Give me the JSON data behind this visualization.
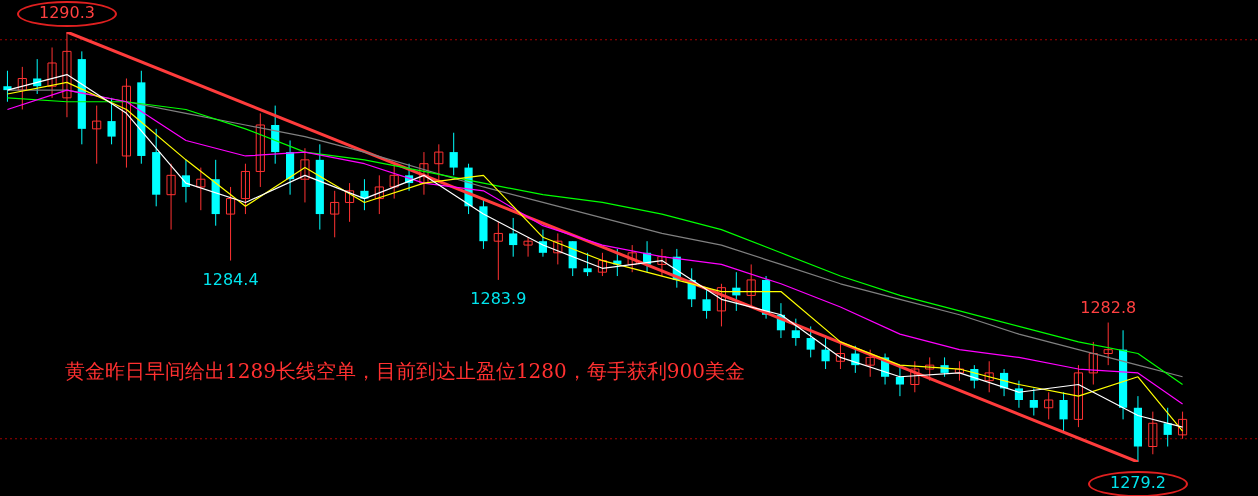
{
  "chart_data": {
    "type": "candlestick",
    "tick_labels": false,
    "legend": false,
    "categories": [
      null,
      null,
      null,
      null,
      null,
      null,
      null,
      null,
      null,
      null,
      null,
      null,
      null,
      null,
      null,
      null,
      null,
      null,
      null,
      null,
      null,
      null,
      null,
      null,
      null,
      null,
      null,
      null,
      null,
      null,
      null,
      null,
      null,
      null,
      null,
      null,
      null,
      null,
      null,
      null,
      null,
      null,
      null,
      null,
      null,
      null,
      null,
      null,
      null,
      null,
      null,
      null,
      null,
      null,
      null,
      null,
      null,
      null,
      null,
      null,
      null,
      null,
      null,
      null,
      null,
      null,
      null,
      null,
      null,
      null,
      null,
      null,
      null,
      null,
      null,
      null,
      null,
      null,
      null,
      null
    ],
    "ohlc": [
      [
        1288.9,
        1289.3,
        1288.5,
        1288.8
      ],
      [
        1288.8,
        1289.4,
        1288.3,
        1289.1
      ],
      [
        1289.1,
        1289.6,
        1288.7,
        1288.9
      ],
      [
        1288.9,
        1289.9,
        1288.6,
        1289.5
      ],
      [
        1288.6,
        1290.3,
        1288.1,
        1289.8
      ],
      [
        1289.6,
        1289.8,
        1287.4,
        1287.8
      ],
      [
        1287.8,
        1288.4,
        1286.9,
        1288.0
      ],
      [
        1288.0,
        1288.6,
        1287.4,
        1287.6
      ],
      [
        1287.1,
        1289.1,
        1286.8,
        1288.9
      ],
      [
        1289.0,
        1289.3,
        1286.9,
        1287.1
      ],
      [
        1287.2,
        1287.8,
        1285.8,
        1286.1
      ],
      [
        1286.1,
        1286.9,
        1285.2,
        1286.6
      ],
      [
        1286.6,
        1287.0,
        1285.9,
        1286.3
      ],
      [
        1286.3,
        1286.8,
        1285.7,
        1286.5
      ],
      [
        1286.5,
        1287.0,
        1285.3,
        1285.6
      ],
      [
        1285.6,
        1286.3,
        1284.4,
        1286.0
      ],
      [
        1286.0,
        1286.9,
        1285.6,
        1286.7
      ],
      [
        1286.7,
        1288.2,
        1286.3,
        1287.9
      ],
      [
        1287.9,
        1288.4,
        1286.9,
        1287.2
      ],
      [
        1287.2,
        1287.5,
        1286.1,
        1286.5
      ],
      [
        1286.5,
        1287.3,
        1285.9,
        1287.0
      ],
      [
        1287.0,
        1287.4,
        1285.2,
        1285.6
      ],
      [
        1285.6,
        1286.2,
        1285.0,
        1285.9
      ],
      [
        1285.9,
        1286.4,
        1285.4,
        1286.2
      ],
      [
        1286.2,
        1286.5,
        1285.7,
        1286.0
      ],
      [
        1286.0,
        1286.6,
        1285.6,
        1286.3
      ],
      [
        1286.3,
        1286.9,
        1286.0,
        1286.6
      ],
      [
        1286.6,
        1286.9,
        1286.2,
        1286.4
      ],
      [
        1286.4,
        1287.2,
        1286.1,
        1286.9
      ],
      [
        1286.9,
        1287.4,
        1286.4,
        1287.2
      ],
      [
        1287.2,
        1287.7,
        1286.6,
        1286.8
      ],
      [
        1286.8,
        1286.9,
        1285.6,
        1285.8
      ],
      [
        1285.8,
        1286.0,
        1284.7,
        1284.9
      ],
      [
        1284.9,
        1285.4,
        1283.9,
        1285.1
      ],
      [
        1285.1,
        1285.5,
        1284.5,
        1284.8
      ],
      [
        1284.8,
        1285.0,
        1284.5,
        1284.9
      ],
      [
        1284.9,
        1285.2,
        1284.5,
        1284.6
      ],
      [
        1284.6,
        1285.1,
        1284.3,
        1284.9
      ],
      [
        1284.9,
        1284.9,
        1284.0,
        1284.2
      ],
      [
        1284.2,
        1284.6,
        1284.0,
        1284.1
      ],
      [
        1284.1,
        1284.6,
        1284.0,
        1284.4
      ],
      [
        1284.4,
        1284.7,
        1284.0,
        1284.3
      ],
      [
        1284.3,
        1284.8,
        1284.1,
        1284.6
      ],
      [
        1284.6,
        1284.9,
        1284.1,
        1284.3
      ],
      [
        1284.3,
        1284.7,
        1284.0,
        1284.5
      ],
      [
        1284.5,
        1284.7,
        1283.7,
        1283.9
      ],
      [
        1283.9,
        1284.2,
        1283.2,
        1283.4
      ],
      [
        1283.4,
        1283.7,
        1282.9,
        1283.1
      ],
      [
        1283.1,
        1283.8,
        1282.7,
        1283.7
      ],
      [
        1283.7,
        1284.1,
        1283.1,
        1283.5
      ],
      [
        1283.5,
        1284.3,
        1283.2,
        1283.9
      ],
      [
        1283.9,
        1284.0,
        1282.9,
        1283.0
      ],
      [
        1283.0,
        1283.3,
        1282.4,
        1282.6
      ],
      [
        1282.6,
        1282.9,
        1282.2,
        1282.4
      ],
      [
        1282.4,
        1282.7,
        1281.9,
        1282.1
      ],
      [
        1282.1,
        1282.4,
        1281.6,
        1281.8
      ],
      [
        1281.8,
        1282.3,
        1281.6,
        1282.0
      ],
      [
        1282.0,
        1282.2,
        1281.5,
        1281.7
      ],
      [
        1281.7,
        1282.1,
        1281.4,
        1281.9
      ],
      [
        1281.9,
        1282.0,
        1281.2,
        1281.4
      ],
      [
        1281.4,
        1281.7,
        1280.9,
        1281.2
      ],
      [
        1281.2,
        1281.8,
        1281.0,
        1281.6
      ],
      [
        1281.6,
        1281.9,
        1281.3,
        1281.7
      ],
      [
        1281.7,
        1281.9,
        1281.4,
        1281.5
      ],
      [
        1281.5,
        1281.8,
        1281.3,
        1281.6
      ],
      [
        1281.6,
        1281.7,
        1281.1,
        1281.3
      ],
      [
        1281.3,
        1281.8,
        1281.0,
        1281.5
      ],
      [
        1281.5,
        1281.6,
        1280.9,
        1281.1
      ],
      [
        1281.1,
        1281.3,
        1280.6,
        1280.8
      ],
      [
        1280.8,
        1281.1,
        1280.4,
        1280.6
      ],
      [
        1280.6,
        1281.0,
        1280.3,
        1280.8
      ],
      [
        1280.8,
        1281.0,
        1280.0,
        1280.3
      ],
      [
        1280.3,
        1281.7,
        1280.1,
        1281.5
      ],
      [
        1281.5,
        1282.3,
        1281.2,
        1282.0
      ],
      [
        1282.0,
        1282.8,
        1281.7,
        1282.1
      ],
      [
        1282.1,
        1282.6,
        1280.3,
        1280.6
      ],
      [
        1280.6,
        1280.9,
        1279.2,
        1279.6
      ],
      [
        1279.6,
        1280.5,
        1279.4,
        1280.2
      ],
      [
        1280.2,
        1280.6,
        1279.6,
        1279.9
      ],
      [
        1279.9,
        1280.5,
        1279.8,
        1280.3
      ]
    ],
    "colors": [
      "#00ffff",
      "#ff3232",
      "#00ffff",
      "#ff3232",
      "#ff3232",
      "#00ffff",
      "#ff3232",
      "#00ffff",
      "#ff3232",
      "#00ffff",
      "#00ffff",
      "#ff3232",
      "#00ffff",
      "#ff3232",
      "#00ffff",
      "#ff3232",
      "#ff3232",
      "#ff3232",
      "#00ffff",
      "#00ffff",
      "#ff3232",
      "#00ffff",
      "#ff3232",
      "#ff3232",
      "#00ffff",
      "#ff3232",
      "#ff3232",
      "#00ffff",
      "#ff3232",
      "#ff3232",
      "#00ffff",
      "#00ffff",
      "#00ffff",
      "#ff3232",
      "#00ffff",
      "#ff3232",
      "#00ffff",
      "#ff3232",
      "#00ffff",
      "#00ffff",
      "#ff3232",
      "#00ffff",
      "#ff3232",
      "#00ffff",
      "#ff3232",
      "#00ffff",
      "#00ffff",
      "#00ffff",
      "#ff3232",
      "#00ffff",
      "#ff3232",
      "#00ffff",
      "#00ffff",
      "#00ffff",
      "#00ffff",
      "#00ffff",
      "#ff3232",
      "#00ffff",
      "#ff3232",
      "#00ffff",
      "#00ffff",
      "#ff3232",
      "#ff3232",
      "#00ffff",
      "#ff3232",
      "#00ffff",
      "#ff3232",
      "#00ffff",
      "#00ffff",
      "#00ffff",
      "#ff3232",
      "#00ffff",
      "#ff3232",
      "#ff3232",
      "#ff3232",
      "#00ffff",
      "#00ffff",
      "#ff3232",
      "#00ffff",
      "#ff3232"
    ],
    "series": [
      {
        "type": "line",
        "color": "#ffffff",
        "values": [
          1288.8,
          null,
          null,
          null,
          1289.2,
          null,
          null,
          null,
          1288.2,
          null,
          null,
          null,
          1286.4,
          null,
          null,
          null,
          1285.9,
          null,
          null,
          null,
          1286.6,
          null,
          null,
          null,
          1286.0,
          null,
          null,
          null,
          1286.6,
          null,
          null,
          null,
          1285.6,
          null,
          null,
          null,
          1284.8,
          null,
          null,
          null,
          1284.2,
          null,
          null,
          null,
          1284.4,
          null,
          null,
          null,
          1283.4,
          null,
          null,
          null,
          1283.0,
          null,
          null,
          null,
          1281.9,
          null,
          null,
          null,
          1281.4,
          null,
          null,
          null,
          1281.5,
          null,
          null,
          null,
          1281.0,
          null,
          null,
          null,
          1281.2,
          null,
          null,
          null,
          1280.4,
          null,
          null,
          1280.1
        ]
      },
      {
        "type": "line",
        "color": "#ffff00",
        "values": [
          1288.7,
          null,
          null,
          null,
          1289.0,
          null,
          null,
          null,
          1288.3,
          null,
          null,
          null,
          1287.0,
          null,
          null,
          null,
          1285.8,
          null,
          null,
          null,
          1286.8,
          null,
          null,
          null,
          1285.9,
          null,
          null,
          null,
          1286.4,
          null,
          null,
          null,
          1286.6,
          null,
          null,
          null,
          1285.0,
          null,
          null,
          null,
          1284.4,
          null,
          null,
          null,
          null,
          null,
          null,
          null,
          1283.6,
          null,
          null,
          null,
          1283.6,
          null,
          null,
          null,
          1282.3,
          null,
          null,
          null,
          1281.7,
          null,
          null,
          null,
          1281.6,
          null,
          null,
          null,
          1281.2,
          null,
          null,
          null,
          1280.9,
          null,
          null,
          null,
          1281.4,
          null,
          null,
          1280.0
        ]
      },
      {
        "type": "line",
        "color": "#ff00ff",
        "values": [
          1288.3,
          null,
          null,
          null,
          1288.8,
          null,
          null,
          null,
          1288.5,
          null,
          null,
          null,
          1287.5,
          null,
          null,
          null,
          1287.1,
          null,
          null,
          null,
          1287.2,
          null,
          null,
          null,
          1286.9,
          null,
          null,
          null,
          1286.4,
          null,
          null,
          null,
          1286.2,
          null,
          null,
          null,
          1285.3,
          null,
          null,
          null,
          1284.8,
          null,
          null,
          null,
          1284.5,
          null,
          null,
          null,
          1284.3,
          null,
          null,
          null,
          1283.8,
          null,
          null,
          null,
          1283.2,
          null,
          null,
          null,
          1282.5,
          null,
          null,
          null,
          1282.1,
          null,
          null,
          null,
          1281.9,
          null,
          null,
          null,
          1281.6,
          null,
          null,
          null,
          1281.5,
          null,
          null,
          1280.7
        ]
      },
      {
        "type": "line",
        "color": "#00ff00",
        "values": [
          1288.6,
          null,
          null,
          null,
          1288.5,
          null,
          null,
          null,
          1288.5,
          null,
          null,
          null,
          1288.3,
          null,
          null,
          null,
          1287.8,
          null,
          null,
          null,
          1287.2,
          null,
          null,
          null,
          1287.0,
          null,
          null,
          null,
          1286.7,
          null,
          null,
          null,
          1286.4,
          null,
          null,
          null,
          1286.1,
          null,
          null,
          null,
          1285.9,
          null,
          null,
          null,
          1285.6,
          null,
          null,
          null,
          1285.2,
          null,
          null,
          null,
          1284.6,
          null,
          null,
          null,
          1284.0,
          null,
          null,
          null,
          1283.5,
          null,
          null,
          null,
          1283.1,
          null,
          null,
          null,
          1282.7,
          null,
          null,
          null,
          1282.3,
          null,
          null,
          null,
          1282.0,
          null,
          null,
          1281.2
        ]
      },
      {
        "type": "line",
        "color": "#808080",
        "values": [
          1288.8,
          null,
          null,
          null,
          1288.8,
          null,
          null,
          null,
          1288.5,
          null,
          null,
          null,
          1288.2,
          null,
          null,
          null,
          1287.9,
          null,
          null,
          null,
          1287.6,
          null,
          null,
          null,
          1287.2,
          null,
          null,
          null,
          null,
          null,
          null,
          null,
          1286.3,
          null,
          null,
          null,
          1285.9,
          null,
          null,
          null,
          1285.5,
          null,
          null,
          null,
          1285.1,
          null,
          null,
          null,
          1284.8,
          null,
          null,
          null,
          1284.3,
          null,
          null,
          null,
          1283.8,
          null,
          null,
          null,
          1283.4,
          null,
          null,
          null,
          1283.0,
          null,
          null,
          null,
          1282.5,
          null,
          null,
          null,
          1282.1,
          null,
          null,
          null,
          1281.7,
          null,
          null,
          1281.4
        ]
      },
      {
        "type": "line",
        "color": "#ff3c3c",
        "values": [
          null,
          null,
          null,
          null,
          1290.3,
          null,
          null,
          null,
          null,
          null,
          null,
          null,
          null,
          null,
          null,
          null,
          null,
          null,
          null,
          null,
          null,
          null,
          null,
          null,
          null,
          null,
          null,
          null,
          null,
          null,
          null,
          null,
          null,
          null,
          null,
          null,
          null,
          null,
          null,
          null,
          null,
          null,
          null,
          null,
          null,
          null,
          null,
          null,
          null,
          null,
          null,
          null,
          null,
          null,
          null,
          null,
          null,
          null,
          null,
          null,
          null,
          null,
          null,
          null,
          null,
          null,
          null,
          null,
          null,
          null,
          null,
          null,
          null,
          null,
          null,
          null,
          1279.2,
          null,
          null,
          null
        ]
      }
    ],
    "ref_lines": [
      {
        "axis": "y",
        "value": 1290.1,
        "color": "#a00000",
        "line_style": "dotted"
      },
      {
        "axis": "y",
        "value": 1279.8,
        "color": "#a00000",
        "line_style": "dotted"
      }
    ],
    "annotations": [
      {
        "text": "1290.3",
        "y": 1290.3
      },
      {
        "text": "1284.4",
        "y": 1284.4
      },
      {
        "text": "1283.9",
        "y": 1283.9
      },
      {
        "text": "1282.8",
        "y": 1282.8
      },
      {
        "text": "1279.2",
        "y": 1279.2
      },
      "黄金昨日早间给出1289长线空单，目前到达止盈位1280，每手获利900美金"
    ]
  }
}
